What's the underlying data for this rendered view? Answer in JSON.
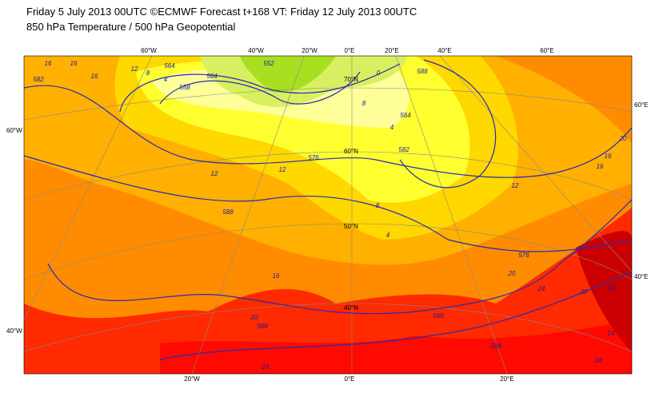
{
  "header": {
    "line1": "Friday 5 July 2013 00UTC ©ECMWF Forecast t+168 VT: Friday 12 July 2013 00UTC",
    "line2": "850 hPa Temperature / 500 hPa Geopotential"
  },
  "graticule": {
    "top": [
      "60°W",
      "40°W",
      "20°W",
      "0°E",
      "20°E",
      "40°E",
      "60°E"
    ],
    "bottom": [
      "20°W",
      "0°E",
      "20°E"
    ],
    "left": [
      "60°W",
      "40°W"
    ],
    "right": [
      "60°E",
      "40°E"
    ],
    "parallels": [
      "70°N",
      "60°N",
      "50°N",
      "40°N"
    ]
  },
  "contour_labels": [
    "16",
    "16",
    "582",
    "16",
    "12",
    "8",
    "4",
    "564",
    "558",
    "564",
    "552",
    "0",
    "588",
    "8",
    "564",
    "4",
    "582",
    "576",
    "12",
    "12",
    "588",
    "8",
    "4",
    "12",
    "16",
    "16",
    "20",
    "576",
    "16",
    "20",
    "588",
    "24",
    "588",
    "24",
    "20",
    "24",
    "588",
    "24",
    "24",
    "20"
  ]
}
